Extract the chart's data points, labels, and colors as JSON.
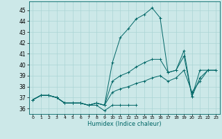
{
  "xlabel": "Humidex (Indice chaleur)",
  "ylabel": "",
  "xlim": [
    -0.5,
    23.5
  ],
  "ylim": [
    35.5,
    45.8
  ],
  "yticks": [
    36,
    37,
    38,
    39,
    40,
    41,
    42,
    43,
    44,
    45
  ],
  "xticks": [
    0,
    1,
    2,
    3,
    4,
    5,
    6,
    7,
    8,
    9,
    10,
    11,
    12,
    13,
    14,
    15,
    16,
    17,
    18,
    19,
    20,
    21,
    22,
    23
  ],
  "bg_color": "#cce8e8",
  "line_color": "#006666",
  "grid_color": "#aad4d4",
  "curves": [
    [
      36.8,
      37.2,
      37.2,
      37.0,
      36.5,
      36.5,
      36.5,
      36.3,
      36.3,
      35.8,
      36.3,
      36.3,
      36.3,
      36.3,
      null,
      null,
      null,
      null,
      null,
      null,
      null,
      null,
      null,
      null
    ],
    [
      36.8,
      37.2,
      37.2,
      37.0,
      36.5,
      36.5,
      36.5,
      36.3,
      36.5,
      36.3,
      40.2,
      42.5,
      43.3,
      44.2,
      44.6,
      45.2,
      44.3,
      39.3,
      39.5,
      41.3,
      37.1,
      39.5,
      39.5,
      null
    ],
    [
      36.8,
      37.2,
      37.2,
      37.0,
      36.5,
      36.5,
      36.5,
      36.3,
      36.5,
      36.3,
      38.5,
      39.0,
      39.3,
      39.8,
      40.2,
      40.5,
      40.5,
      39.3,
      39.5,
      40.8,
      37.1,
      38.8,
      39.5,
      39.5
    ],
    [
      36.8,
      37.2,
      37.2,
      37.0,
      36.5,
      36.5,
      36.5,
      36.3,
      36.5,
      36.3,
      37.5,
      37.8,
      38.0,
      38.3,
      38.5,
      38.8,
      39.0,
      38.5,
      38.8,
      39.5,
      37.5,
      38.5,
      39.5,
      39.5
    ]
  ]
}
